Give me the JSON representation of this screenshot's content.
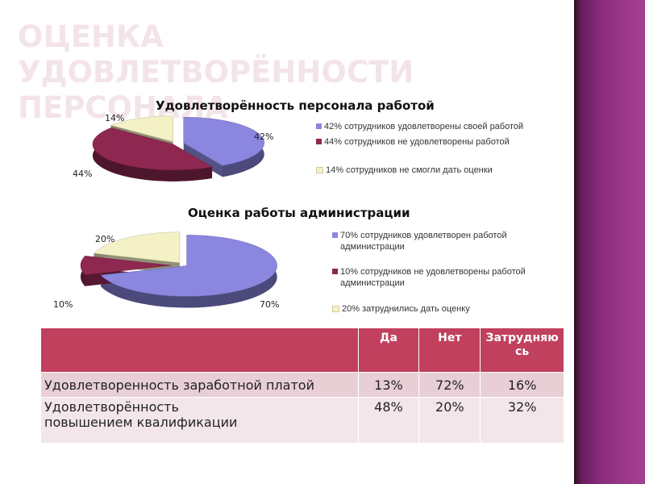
{
  "slide": {
    "title": "ОЦЕНКА УДОВЛЕТВОРЁННОСТИ ПЕРСОНАЛА"
  },
  "chart_data": [
    {
      "type": "pie",
      "title": "Удовлетворённость  персонала работой",
      "slices": [
        {
          "label": "42%",
          "value": 42,
          "legend": "42% сотрудников удовлетворены своей работой",
          "color": "#8b87e0"
        },
        {
          "label": "44%",
          "value": 44,
          "legend": "44% сотрудников не удовлетворены работой",
          "color": "#8e2850"
        },
        {
          "label": "14%",
          "value": 14,
          "legend": "14% сотрудников не смогли дать оценки",
          "color": "#f4f1c6"
        }
      ],
      "legend_position": "right"
    },
    {
      "type": "pie",
      "title": "Оценка работы администрации",
      "slices": [
        {
          "label": "70%",
          "value": 70,
          "legend": "70% сотрудников удовлетворен работой администрации",
          "color": "#8b87e0"
        },
        {
          "label": "10%",
          "value": 10,
          "legend": "10% сотрудников не удовлетворены работой администрации",
          "color": "#8e2850"
        },
        {
          "label": "20%",
          "value": 20,
          "legend": "20% затруднились дать оценку",
          "color": "#f4f1c6"
        }
      ],
      "legend_position": "right"
    },
    {
      "type": "table",
      "columns": [
        "",
        "Да",
        "Нет",
        "Затрудняюсь"
      ],
      "rows": [
        {
          "label": "Удовлетворенность заработной платой",
          "values": [
            "13%",
            "72%",
            "16%"
          ]
        },
        {
          "label": "Удовлетворённость повышением квалификации",
          "values": [
            "48%",
            "20%",
            "32%"
          ]
        }
      ]
    }
  ]
}
